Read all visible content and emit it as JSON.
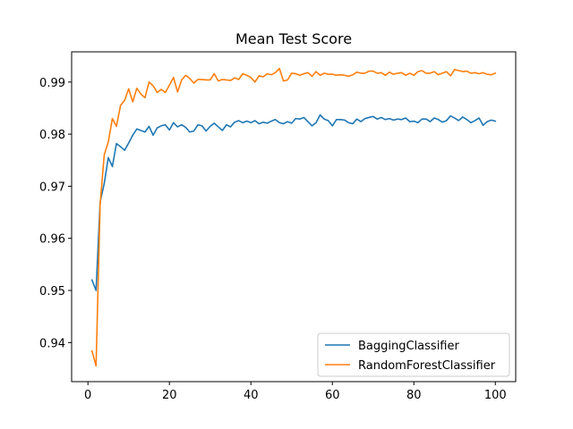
{
  "chart_data": {
    "type": "line",
    "title": "Mean Test Score",
    "xlabel": "",
    "ylabel": "",
    "xlim": [
      -4,
      105
    ],
    "ylim": [
      0.9325,
      0.9958
    ],
    "xticks": [
      0,
      20,
      40,
      60,
      80,
      100
    ],
    "yticks": [
      0.94,
      0.95,
      0.96,
      0.97,
      0.98,
      0.99
    ],
    "ytick_labels": [
      "0.94",
      "0.95",
      "0.96",
      "0.97",
      "0.98",
      "0.99"
    ],
    "grid": false,
    "legend_position": "lower-right",
    "x": [
      1,
      2,
      3,
      4,
      5,
      6,
      7,
      8,
      9,
      10,
      11,
      12,
      13,
      14,
      15,
      16,
      17,
      18,
      19,
      20,
      21,
      22,
      23,
      24,
      25,
      26,
      27,
      28,
      29,
      30,
      31,
      32,
      33,
      34,
      35,
      36,
      37,
      38,
      39,
      40,
      41,
      42,
      43,
      44,
      45,
      46,
      47,
      48,
      49,
      50,
      51,
      52,
      53,
      54,
      55,
      56,
      57,
      58,
      59,
      60,
      61,
      62,
      63,
      64,
      65,
      66,
      67,
      68,
      69,
      70,
      71,
      72,
      73,
      74,
      75,
      76,
      77,
      78,
      79,
      80,
      81,
      82,
      83,
      84,
      85,
      86,
      87,
      88,
      89,
      90,
      91,
      92,
      93,
      94,
      95,
      96,
      97,
      98,
      99,
      100
    ],
    "series": [
      {
        "name": "BaggingClassifier",
        "color": "#1f77b4",
        "values": [
          0.952,
          0.95,
          0.967,
          0.9705,
          0.9755,
          0.9738,
          0.9782,
          0.9776,
          0.9769,
          0.9783,
          0.9798,
          0.981,
          0.9807,
          0.9804,
          0.9815,
          0.9798,
          0.9812,
          0.9816,
          0.9818,
          0.9808,
          0.9822,
          0.9814,
          0.9818,
          0.9813,
          0.9804,
          0.9806,
          0.9818,
          0.9816,
          0.9806,
          0.9815,
          0.9821,
          0.9814,
          0.9807,
          0.9818,
          0.9814,
          0.9823,
          0.9826,
          0.9822,
          0.9825,
          0.9822,
          0.9826,
          0.982,
          0.9823,
          0.9821,
          0.9825,
          0.9828,
          0.9822,
          0.982,
          0.9824,
          0.9821,
          0.983,
          0.9829,
          0.9832,
          0.9824,
          0.9816,
          0.9822,
          0.9837,
          0.9829,
          0.9826,
          0.9816,
          0.9828,
          0.9828,
          0.9827,
          0.9822,
          0.982,
          0.9829,
          0.9824,
          0.983,
          0.9832,
          0.9834,
          0.9829,
          0.9832,
          0.9828,
          0.983,
          0.9827,
          0.9829,
          0.9828,
          0.9831,
          0.9824,
          0.9825,
          0.9822,
          0.9829,
          0.9829,
          0.9824,
          0.9831,
          0.9828,
          0.9823,
          0.9826,
          0.9835,
          0.9831,
          0.9826,
          0.9833,
          0.9828,
          0.9822,
          0.9826,
          0.9831,
          0.9817,
          0.9824,
          0.9827,
          0.9825
        ]
      },
      {
        "name": "RandomForestClassifier",
        "color": "#ff7f0e",
        "values": [
          0.9384,
          0.9355,
          0.9665,
          0.976,
          0.9785,
          0.983,
          0.9815,
          0.9855,
          0.9865,
          0.9887,
          0.9862,
          0.9888,
          0.9877,
          0.987,
          0.99,
          0.9893,
          0.988,
          0.9886,
          0.988,
          0.9894,
          0.9909,
          0.9881,
          0.9904,
          0.9913,
          0.9907,
          0.9898,
          0.9905,
          0.9905,
          0.9904,
          0.9904,
          0.9916,
          0.9902,
          0.9905,
          0.9904,
          0.9903,
          0.9908,
          0.9905,
          0.9916,
          0.9913,
          0.9909,
          0.99,
          0.9912,
          0.991,
          0.9916,
          0.9914,
          0.9918,
          0.9926,
          0.9902,
          0.9904,
          0.9917,
          0.9916,
          0.9913,
          0.9916,
          0.9918,
          0.9911,
          0.992,
          0.9913,
          0.9917,
          0.9915,
          0.9915,
          0.9913,
          0.9914,
          0.9913,
          0.9911,
          0.9914,
          0.9919,
          0.9917,
          0.9917,
          0.9921,
          0.9921,
          0.9917,
          0.9918,
          0.9913,
          0.9919,
          0.9915,
          0.9917,
          0.9918,
          0.9913,
          0.9917,
          0.9913,
          0.992,
          0.9922,
          0.9917,
          0.9917,
          0.992,
          0.9914,
          0.9917,
          0.992,
          0.9912,
          0.9924,
          0.9922,
          0.992,
          0.9921,
          0.9917,
          0.9918,
          0.9916,
          0.9918,
          0.9915,
          0.9914,
          0.9917
        ]
      }
    ]
  }
}
